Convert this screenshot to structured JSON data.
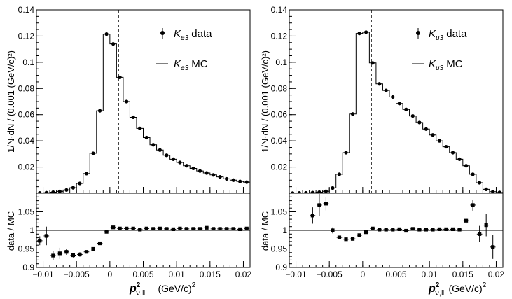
{
  "chart_data": [
    {
      "type": "histogram",
      "panel": "upper-left",
      "title": "",
      "xlabel": "",
      "ylabel": "1/N·dN / (0.001 (GeV/c)²)",
      "xlim": [
        -0.011,
        0.021
      ],
      "ylim": [
        0,
        0.14
      ],
      "yticks": [
        0.02,
        0.04,
        0.06,
        0.08,
        0.1,
        0.12,
        0.14
      ],
      "ytick_labels": [
        "0.02",
        "0.04",
        "0.06",
        "0.08",
        "0.1",
        "0.12",
        "0.14"
      ],
      "legend": [
        {
          "marker": "data",
          "label": "K",
          "sub": "e3",
          "suffix": " data"
        },
        {
          "marker": "line",
          "label": "K",
          "sub": "e3",
          "suffix": " MC"
        }
      ],
      "legend_position": "top-right",
      "cut_x": 0.0013,
      "bin_width": 0.001,
      "x": [
        -0.0105,
        -0.0095,
        -0.0085,
        -0.0075,
        -0.0065,
        -0.0055,
        -0.0045,
        -0.0035,
        -0.0025,
        -0.0015,
        -0.0005,
        0.0005,
        0.0015,
        0.0025,
        0.0035,
        0.0045,
        0.0055,
        0.0065,
        0.0075,
        0.0085,
        0.0095,
        0.0105,
        0.0115,
        0.0125,
        0.0135,
        0.0145,
        0.0155,
        0.0165,
        0.0175,
        0.0185,
        0.0195,
        0.0205
      ],
      "series": [
        {
          "name": "data",
          "values": [
            0.0002,
            0.0004,
            0.0008,
            0.0014,
            0.0025,
            0.0042,
            0.0075,
            0.015,
            0.0305,
            0.063,
            0.1215,
            0.114,
            0.0885,
            0.07,
            0.058,
            0.0495,
            0.0425,
            0.037,
            0.033,
            0.029,
            0.026,
            0.0235,
            0.021,
            0.019,
            0.017,
            0.0155,
            0.014,
            0.0125,
            0.011,
            0.01,
            0.009,
            0.0085
          ]
        },
        {
          "name": "MC",
          "values": [
            0.0002,
            0.0004,
            0.0008,
            0.0014,
            0.0025,
            0.0042,
            0.0075,
            0.015,
            0.0305,
            0.063,
            0.1215,
            0.114,
            0.0885,
            0.07,
            0.058,
            0.0495,
            0.0425,
            0.037,
            0.033,
            0.029,
            0.026,
            0.0235,
            0.021,
            0.019,
            0.017,
            0.0155,
            0.014,
            0.0125,
            0.011,
            0.01,
            0.009,
            0.0085
          ]
        }
      ]
    },
    {
      "type": "scatter",
      "panel": "lower-left",
      "title": "",
      "xlabel": "p²ν,‖  (GeV/c)²",
      "ylabel": "data / MC",
      "xlim": [
        -0.011,
        0.021
      ],
      "ylim": [
        0.9,
        1.1
      ],
      "yticks": [
        0.9,
        0.95,
        1,
        1.05
      ],
      "ytick_labels": [
        "0.9",
        "0.95",
        "1",
        "1.05"
      ],
      "xticks": [
        -0.01,
        -0.005,
        0,
        0.005,
        0.01,
        0.015,
        0.02
      ],
      "xtick_labels": [
        "−0.01",
        "−0.005",
        "0",
        "0.005",
        "0.01",
        "0.015",
        "0.02"
      ],
      "reference_line": 1,
      "x": [
        -0.0105,
        -0.0095,
        -0.0085,
        -0.0075,
        -0.0065,
        -0.0055,
        -0.0045,
        -0.0035,
        -0.0025,
        -0.0015,
        -0.0005,
        0.0005,
        0.0015,
        0.0025,
        0.0035,
        0.0045,
        0.0055,
        0.0065,
        0.0075,
        0.0085,
        0.0095,
        0.0105,
        0.0115,
        0.0125,
        0.0135,
        0.0145,
        0.0155,
        0.0165,
        0.0175,
        0.0185,
        0.0195,
        0.0205
      ],
      "values": [
        0.972,
        0.985,
        0.932,
        0.938,
        0.942,
        0.933,
        0.935,
        0.942,
        0.95,
        0.965,
        0.996,
        1.008,
        1.005,
        1.005,
        1.005,
        1.002,
        1.005,
        1.004,
        1.005,
        1.004,
        1.003,
        1.005,
        1.004,
        1.004,
        1.004,
        1.007,
        1.004,
        1.004,
        1.004,
        1.004,
        1.003,
        1.005
      ],
      "errors": [
        0.012,
        0.025,
        0.012,
        0.015,
        0.008,
        0.006,
        0.006,
        0.004,
        0.004,
        0.004,
        0.003,
        0.003,
        0.003,
        0.003,
        0.003,
        0.003,
        0.003,
        0.003,
        0.003,
        0.003,
        0.003,
        0.003,
        0.003,
        0.003,
        0.003,
        0.004,
        0.003,
        0.003,
        0.003,
        0.003,
        0.003,
        0.003
      ]
    },
    {
      "type": "histogram",
      "panel": "upper-right",
      "title": "",
      "xlabel": "",
      "ylabel": "1/N·dN / (0.001 (GeV/c)²)",
      "xlim": [
        -0.011,
        0.021
      ],
      "ylim": [
        0,
        0.14
      ],
      "yticks": [
        0.02,
        0.04,
        0.06,
        0.08,
        0.1,
        0.12,
        0.14
      ],
      "ytick_labels": [
        "0.02",
        "0.04",
        "0.06",
        "0.08",
        "0.1",
        "0.12",
        "0.14"
      ],
      "legend": [
        {
          "marker": "data",
          "label": "K",
          "sub": "μ3",
          "suffix": " data"
        },
        {
          "marker": "line",
          "label": "K",
          "sub": "μ3",
          "suffix": " MC"
        }
      ],
      "legend_position": "top-right",
      "cut_x": 0.0013,
      "bin_width": 0.001,
      "x": [
        -0.0105,
        -0.0095,
        -0.0085,
        -0.0075,
        -0.0065,
        -0.0055,
        -0.0045,
        -0.0035,
        -0.0025,
        -0.0015,
        -0.0005,
        0.0005,
        0.0015,
        0.0025,
        0.0035,
        0.0045,
        0.0055,
        0.0065,
        0.0075,
        0.0085,
        0.0095,
        0.0105,
        0.0115,
        0.0125,
        0.0135,
        0.0145,
        0.0155,
        0.0165,
        0.0175,
        0.0185,
        0.0195,
        0.0205
      ],
      "series": [
        {
          "name": "data",
          "values": [
            0.0001,
            0.0002,
            0.0003,
            0.0005,
            0.0008,
            0.0015,
            0.004,
            0.0145,
            0.031,
            0.0605,
            0.122,
            0.123,
            0.0995,
            0.0835,
            0.0785,
            0.0735,
            0.0685,
            0.064,
            0.059,
            0.054,
            0.049,
            0.0445,
            0.04,
            0.0355,
            0.031,
            0.026,
            0.021,
            0.0145,
            0.008,
            0.003,
            0.0012,
            0.0006
          ]
        },
        {
          "name": "MC",
          "values": [
            0.0001,
            0.0002,
            0.0003,
            0.0005,
            0.0008,
            0.0015,
            0.004,
            0.0145,
            0.031,
            0.0605,
            0.122,
            0.123,
            0.0995,
            0.0835,
            0.0785,
            0.0735,
            0.0685,
            0.064,
            0.059,
            0.054,
            0.049,
            0.0445,
            0.04,
            0.0355,
            0.031,
            0.026,
            0.021,
            0.0145,
            0.008,
            0.003,
            0.0012,
            0.0006
          ]
        }
      ]
    },
    {
      "type": "scatter",
      "panel": "lower-right",
      "title": "",
      "xlabel": "p²ν,‖  (GeV/c)²",
      "ylabel": "data / MC",
      "xlim": [
        -0.011,
        0.021
      ],
      "ylim": [
        0.9,
        1.1
      ],
      "yticks": [
        0.9,
        0.95,
        1,
        1.05
      ],
      "ytick_labels": [
        "0.9",
        "0.95",
        "1",
        "1.05"
      ],
      "xticks": [
        -0.01,
        -0.005,
        0,
        0.005,
        0.01,
        0.015,
        0.02
      ],
      "xtick_labels": [
        "−0.01",
        "−0.005",
        "0",
        "0.005",
        "0.01",
        "0.015",
        "0.02"
      ],
      "reference_line": 1,
      "x": [
        -0.0075,
        -0.0065,
        -0.0055,
        -0.0045,
        -0.0035,
        -0.0025,
        -0.0015,
        -0.0005,
        0.0005,
        0.0015,
        0.0025,
        0.0035,
        0.0045,
        0.0055,
        0.0065,
        0.0075,
        0.0085,
        0.0095,
        0.0105,
        0.0115,
        0.0125,
        0.0135,
        0.0145,
        0.0155,
        0.0165,
        0.0175,
        0.0185,
        0.0195
      ],
      "values": [
        1.04,
        1.068,
        1.072,
        1.0,
        0.981,
        0.976,
        0.977,
        0.987,
        0.995,
        1.005,
        1.002,
        1.002,
        1.002,
        1.003,
        0.999,
        1.004,
        1.002,
        1.002,
        1.002,
        1.003,
        1.003,
        1.003,
        1.002,
        1.026,
        1.068,
        0.99,
        1.014,
        0.955
      ],
      "errors": [
        0.022,
        0.03,
        0.018,
        0.008,
        0.004,
        0.003,
        0.003,
        0.003,
        0.003,
        0.003,
        0.003,
        0.003,
        0.003,
        0.003,
        0.003,
        0.003,
        0.003,
        0.003,
        0.003,
        0.003,
        0.003,
        0.003,
        0.004,
        0.008,
        0.015,
        0.022,
        0.03,
        0.032
      ]
    }
  ],
  "axis_title": {
    "symbol": "p",
    "power": "2",
    "subscript": "ν,‖",
    "unit": "(GeV/c)",
    "unit_power": "2"
  }
}
